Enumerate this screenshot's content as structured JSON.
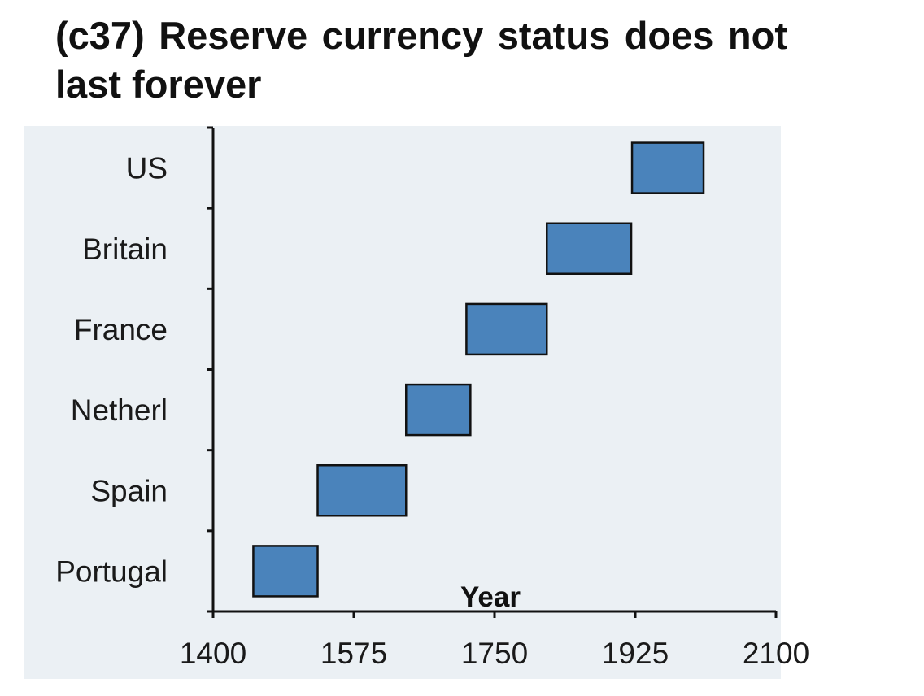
{
  "chart_data": {
    "type": "bar",
    "orientation": "horizontal-range",
    "title": "(c37) Reserve currency status does not last forever",
    "xlabel": "Year",
    "ylabel": "",
    "xlim": [
      1400,
      2100
    ],
    "xticks": [
      1400,
      1575,
      1750,
      1925,
      2100
    ],
    "categories": [
      "Portugal",
      "Spain",
      "Netherl",
      "France",
      "Britain",
      "US"
    ],
    "ranges": [
      {
        "category": "Portugal",
        "start": 1450,
        "end": 1530
      },
      {
        "category": "Spain",
        "start": 1530,
        "end": 1640
      },
      {
        "category": "Netherl",
        "start": 1640,
        "end": 1720
      },
      {
        "category": "France",
        "start": 1715,
        "end": 1815
      },
      {
        "category": "Britain",
        "start": 1815,
        "end": 1920
      },
      {
        "category": "US",
        "start": 1921,
        "end": 2010
      }
    ],
    "grid": false,
    "colors": {
      "bar_fill": "#4a83bb",
      "bar_stroke": "#111111",
      "plot_background": "#ebf0f4",
      "axis": "#111111"
    }
  }
}
